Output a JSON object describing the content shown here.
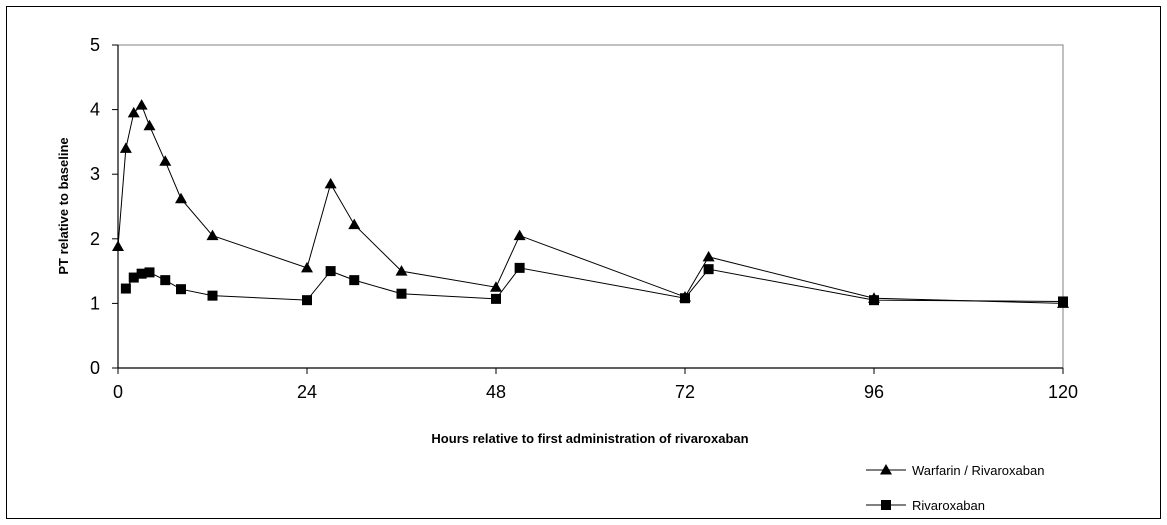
{
  "chart_data": {
    "type": "line",
    "xlabel": "Hours relative to first administration of rivaroxaban",
    "ylabel": "PT relative to baseline",
    "xlim": [
      0,
      120
    ],
    "ylim": [
      0,
      5
    ],
    "xticks": [
      "0",
      "24",
      "48",
      "72",
      "96",
      "120"
    ],
    "yticks": [
      "0",
      "1",
      "2",
      "3",
      "4",
      "5"
    ],
    "grid": false,
    "legend_position": "bottom-right",
    "series": [
      {
        "name": "Warfarin / Rivaroxaban",
        "marker": "triangle",
        "color": "#000000",
        "x": [
          0,
          1,
          2,
          3,
          4,
          6,
          8,
          12,
          24,
          27,
          30,
          36,
          48,
          51,
          72,
          75,
          96,
          120
        ],
        "y": [
          1.88,
          3.4,
          3.95,
          4.07,
          3.75,
          3.2,
          2.62,
          2.05,
          1.55,
          2.85,
          2.22,
          1.5,
          1.25,
          2.05,
          1.1,
          1.72,
          1.08,
          1.0
        ]
      },
      {
        "name": "Rivaroxaban",
        "marker": "square",
        "color": "#000000",
        "x": [
          1,
          2,
          3,
          4,
          6,
          8,
          12,
          24,
          27,
          30,
          36,
          48,
          51,
          72,
          75,
          96,
          120
        ],
        "y": [
          1.23,
          1.4,
          1.46,
          1.48,
          1.36,
          1.22,
          1.12,
          1.05,
          1.5,
          1.36,
          1.15,
          1.07,
          1.55,
          1.08,
          1.53,
          1.05,
          1.03
        ]
      }
    ]
  }
}
